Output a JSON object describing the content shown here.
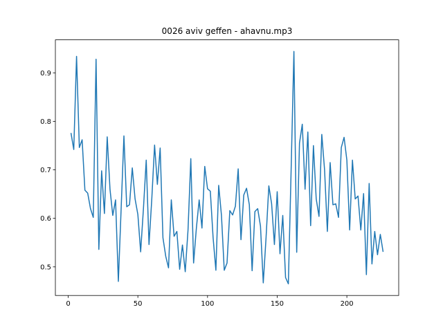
{
  "chart_data": {
    "type": "line",
    "title": "0026 aviv geffen - ahavnu.mp3",
    "x": [
      2,
      4,
      6,
      8,
      10,
      12,
      14,
      16,
      18,
      20,
      22,
      24,
      26,
      28,
      30,
      32,
      34,
      36,
      38,
      40,
      42,
      44,
      46,
      48,
      50,
      52,
      54,
      56,
      58,
      60,
      62,
      64,
      66,
      68,
      70,
      72,
      74,
      76,
      78,
      80,
      82,
      84,
      86,
      88,
      90,
      92,
      94,
      96,
      98,
      100,
      102,
      104,
      106,
      108,
      110,
      112,
      114,
      116,
      118,
      120,
      122,
      124,
      126,
      128,
      130,
      132,
      134,
      136,
      138,
      140,
      142,
      144,
      146,
      148,
      150,
      152,
      154,
      156,
      158,
      160,
      162,
      164,
      166,
      168,
      170,
      172,
      174,
      176,
      178,
      180,
      182,
      184,
      186,
      188,
      190,
      192,
      194,
      196,
      198,
      200,
      202,
      204,
      206,
      208,
      210,
      212,
      214,
      216,
      218,
      220,
      222,
      224,
      226
    ],
    "series": [
      {
        "color": "#1f77b4",
        "values": [
          0.776,
          0.742,
          0.934,
          0.746,
          0.762,
          0.658,
          0.652,
          0.62,
          0.602,
          0.928,
          0.536,
          0.698,
          0.61,
          0.768,
          0.66,
          0.606,
          0.638,
          0.47,
          0.62,
          0.77,
          0.624,
          0.628,
          0.704,
          0.64,
          0.608,
          0.531,
          0.62,
          0.72,
          0.546,
          0.64,
          0.751,
          0.67,
          0.745,
          0.56,
          0.522,
          0.498,
          0.638,
          0.563,
          0.573,
          0.495,
          0.545,
          0.49,
          0.576,
          0.723,
          0.508,
          0.58,
          0.638,
          0.58,
          0.707,
          0.661,
          0.656,
          0.56,
          0.493,
          0.668,
          0.606,
          0.493,
          0.508,
          0.616,
          0.607,
          0.625,
          0.702,
          0.556,
          0.648,
          0.662,
          0.628,
          0.492,
          0.614,
          0.62,
          0.584,
          0.467,
          0.56,
          0.667,
          0.63,
          0.546,
          0.655,
          0.527,
          0.606,
          0.478,
          0.465,
          0.7,
          0.944,
          0.53,
          0.755,
          0.794,
          0.66,
          0.778,
          0.585,
          0.75,
          0.64,
          0.604,
          0.773,
          0.7,
          0.573,
          0.715,
          0.628,
          0.63,
          0.602,
          0.746,
          0.767,
          0.72,
          0.576,
          0.72,
          0.64,
          0.646,
          0.576,
          0.651,
          0.484,
          0.672,
          0.506,
          0.573,
          0.525,
          0.567,
          0.531
        ]
      }
    ],
    "xlim": [
      -9.2,
      237.2
    ],
    "ylim": [
      0.441,
      0.968
    ],
    "xticks": [
      0,
      50,
      100,
      150,
      200
    ],
    "yticks": [
      0.5,
      0.6,
      0.7,
      0.8,
      0.9
    ]
  }
}
